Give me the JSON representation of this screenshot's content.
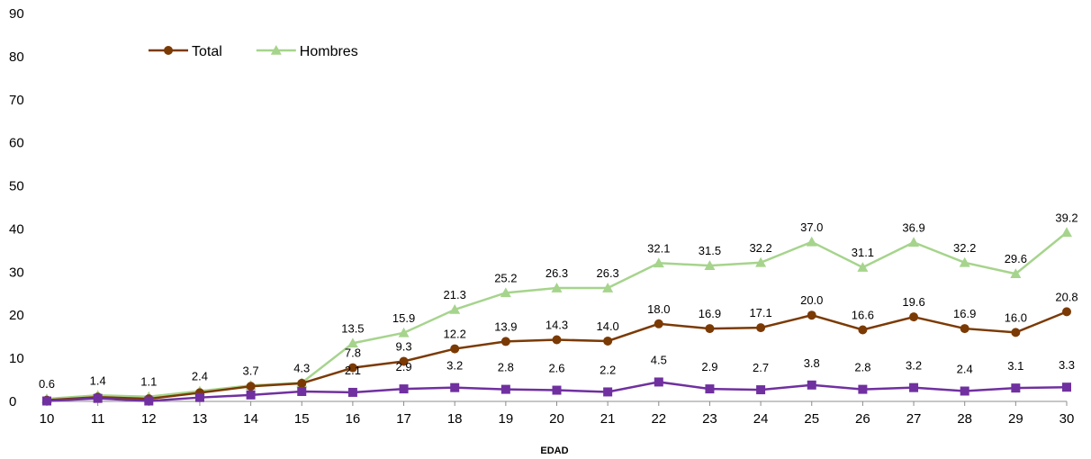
{
  "chart_data": {
    "type": "line",
    "xlabel": "EDAD",
    "ylabel": "",
    "x": [
      10,
      11,
      12,
      13,
      14,
      15,
      16,
      17,
      18,
      19,
      20,
      21,
      22,
      23,
      24,
      25,
      26,
      27,
      28,
      29,
      30
    ],
    "ylim": [
      0,
      90
    ],
    "yticks": [
      0,
      10,
      20,
      30,
      40,
      50,
      60,
      70,
      80,
      90
    ],
    "grid": false,
    "legend_position": "top-left",
    "series": [
      {
        "name": "Total",
        "color": "#7b3a04",
        "marker": "circle",
        "values": [
          0.3,
          1.0,
          0.6,
          2.0,
          3.5,
          4.2,
          7.8,
          9.3,
          12.2,
          13.9,
          14.3,
          14.0,
          18.0,
          16.9,
          17.1,
          20.0,
          16.6,
          19.6,
          16.9,
          16.0,
          20.8
        ],
        "labels": [
          "",
          "",
          "",
          "",
          "",
          "",
          "7.8",
          "9.3",
          "12.2",
          "13.9",
          "14.3",
          "14.0",
          "18.0",
          "16.9",
          "17.1",
          "20.0",
          "16.6",
          "19.6",
          "16.9",
          "16.0",
          "20.8"
        ]
      },
      {
        "name": "Hombres",
        "color": "#a6d48c",
        "marker": "triangle",
        "values": [
          0.6,
          1.4,
          1.1,
          2.4,
          3.7,
          4.3,
          13.5,
          15.9,
          21.3,
          25.2,
          26.3,
          26.3,
          32.1,
          31.5,
          32.2,
          37.0,
          31.1,
          36.9,
          32.2,
          29.6,
          39.2
        ],
        "labels": [
          "0.6",
          "1.4",
          "1.1",
          "2.4",
          "3.7",
          "4.3",
          "13.5",
          "15.9",
          "21.3",
          "25.2",
          "26.3",
          "26.3",
          "32.1",
          "31.5",
          "32.2",
          "37.0",
          "31.1",
          "36.9",
          "32.2",
          "29.6",
          "39.2"
        ]
      },
      {
        "name": "",
        "color": "#7030a0",
        "marker": "square",
        "values": [
          0.1,
          0.7,
          0.1,
          0.9,
          1.5,
          2.3,
          2.1,
          2.9,
          3.2,
          2.8,
          2.6,
          2.2,
          4.5,
          2.9,
          2.7,
          3.8,
          2.8,
          3.2,
          2.4,
          3.1,
          3.3
        ],
        "labels": [
          "",
          "",
          "",
          "",
          "",
          "",
          "2.1",
          "2.9",
          "3.2",
          "2.8",
          "2.6",
          "2.2",
          "4.5",
          "2.9",
          "2.7",
          "3.8",
          "2.8",
          "3.2",
          "2.4",
          "3.1",
          "3.3"
        ]
      }
    ]
  }
}
